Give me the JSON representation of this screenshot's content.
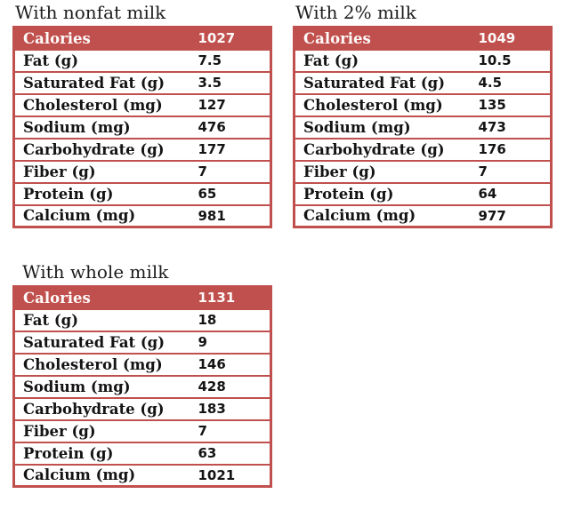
{
  "accent_color": "#c0504d",
  "text_color": "#141414",
  "chart_data": [
    {
      "type": "table",
      "title": "With nonfat milk",
      "header": {
        "label": "Calories",
        "value": "1027"
      },
      "rows": [
        {
          "label": "Fat (g)",
          "value": "7.5"
        },
        {
          "label": "Saturated Fat (g)",
          "value": "3.5"
        },
        {
          "label": "Cholesterol (mg)",
          "value": "127"
        },
        {
          "label": "Sodium (mg)",
          "value": "476"
        },
        {
          "label": "Carbohydrate (g)",
          "value": "177"
        },
        {
          "label": "Fiber (g)",
          "value": "7"
        },
        {
          "label": "Protein (g)",
          "value": "65"
        },
        {
          "label": "Calcium (mg)",
          "value": "981"
        }
      ]
    },
    {
      "type": "table",
      "title": "With 2% milk",
      "header": {
        "label": "Calories",
        "value": "1049"
      },
      "rows": [
        {
          "label": "Fat (g)",
          "value": "10.5"
        },
        {
          "label": "Saturated Fat (g)",
          "value": "4.5"
        },
        {
          "label": "Cholesterol (mg)",
          "value": "135"
        },
        {
          "label": "Sodium (mg)",
          "value": "473"
        },
        {
          "label": "Carbohydrate (g)",
          "value": "176"
        },
        {
          "label": "Fiber (g)",
          "value": "7"
        },
        {
          "label": "Protein (g)",
          "value": "64"
        },
        {
          "label": "Calcium (mg)",
          "value": "977"
        }
      ]
    },
    {
      "type": "table",
      "title": "With whole milk",
      "header": {
        "label": "Calories",
        "value": "1131"
      },
      "rows": [
        {
          "label": "Fat (g)",
          "value": "18"
        },
        {
          "label": "Saturated Fat (g)",
          "value": "9"
        },
        {
          "label": "Cholesterol (mg)",
          "value": "146"
        },
        {
          "label": "Sodium (mg)",
          "value": "428"
        },
        {
          "label": "Carbohydrate (g)",
          "value": "183"
        },
        {
          "label": "Fiber (g)",
          "value": "7"
        },
        {
          "label": "Protein (g)",
          "value": "63"
        },
        {
          "label": "Calcium (mg)",
          "value": "1021"
        }
      ]
    }
  ]
}
